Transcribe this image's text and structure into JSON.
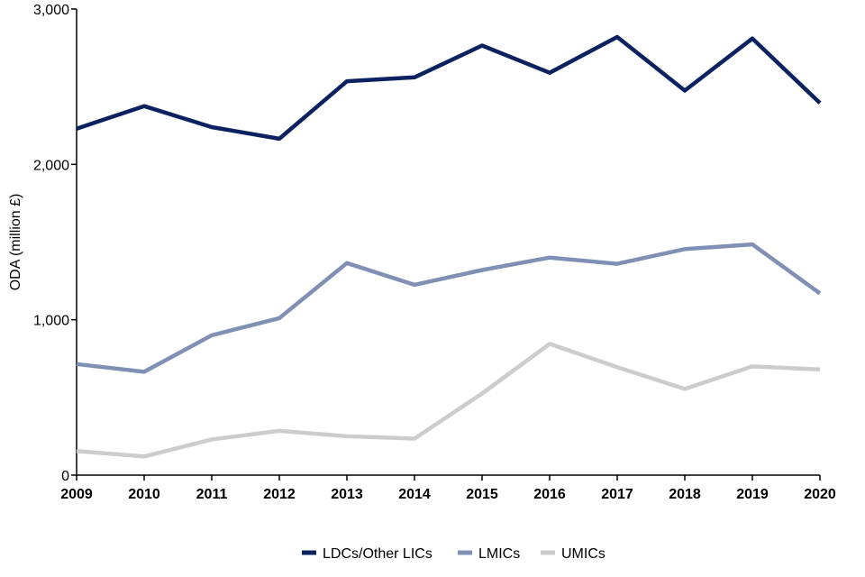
{
  "chart_data": {
    "type": "line",
    "title": "",
    "xlabel": "",
    "ylabel": "ODA (million £)",
    "ylim": [
      0,
      3000
    ],
    "y_ticks": [
      0,
      1000,
      2000,
      3000
    ],
    "y_tick_labels": [
      "0",
      "1,000",
      "2,000",
      "3,000"
    ],
    "categories": [
      "2009",
      "2010",
      "2011",
      "2012",
      "2013",
      "2014",
      "2015",
      "2016",
      "2017",
      "2018",
      "2019",
      "2020"
    ],
    "grid": false,
    "legend_position": "bottom",
    "series": [
      {
        "name": "LDCs/Other LICs",
        "color": "#0b2160",
        "values": [
          2230,
          2375,
          2240,
          2165,
          2535,
          2560,
          2765,
          2590,
          2820,
          2475,
          2810,
          2395
        ]
      },
      {
        "name": "LMICs",
        "color": "#8090b4",
        "values": [
          715,
          665,
          900,
          1010,
          1365,
          1225,
          1320,
          1400,
          1360,
          1455,
          1485,
          1170
        ]
      },
      {
        "name": "UMICs",
        "color": "#cccccc",
        "values": [
          155,
          120,
          230,
          285,
          250,
          235,
          525,
          845,
          695,
          555,
          700,
          680
        ]
      }
    ]
  }
}
